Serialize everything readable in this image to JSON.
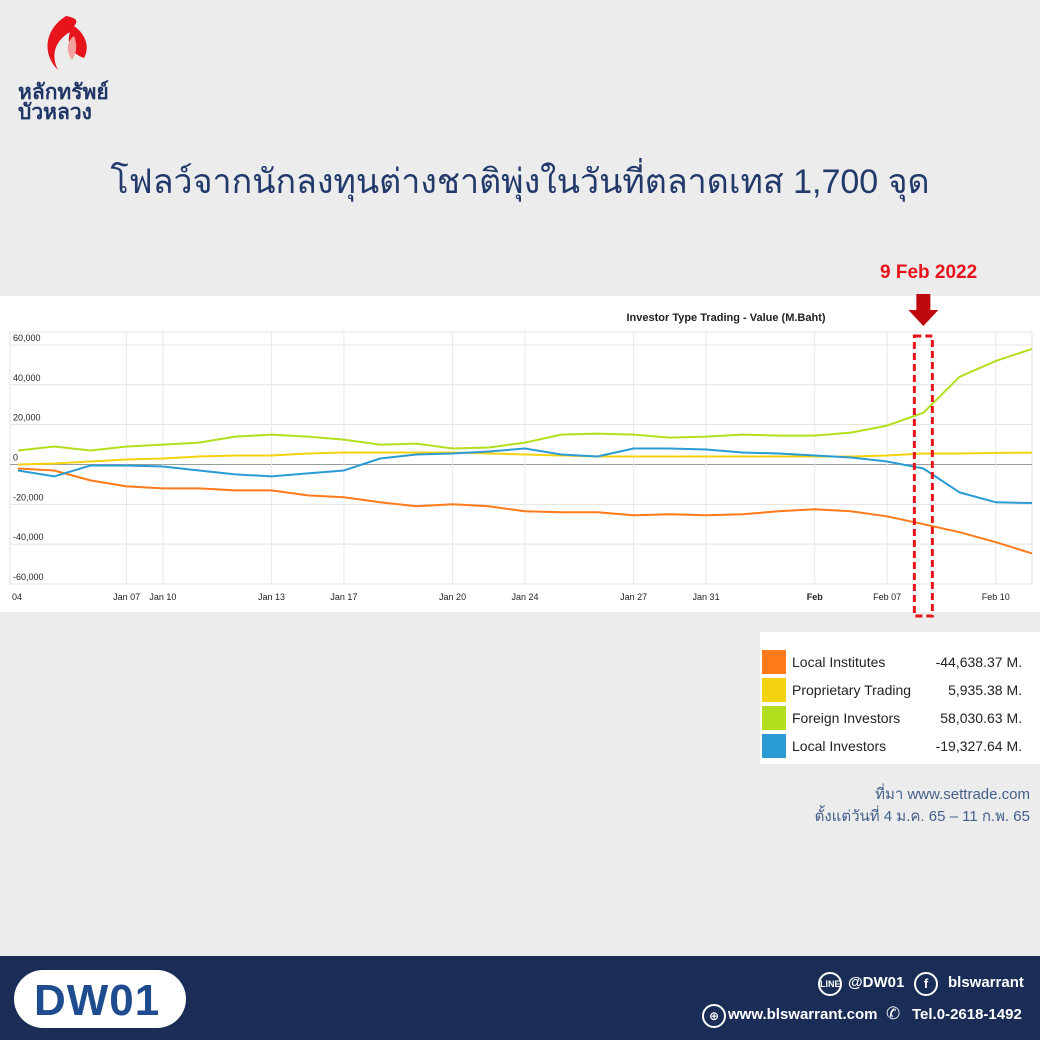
{
  "brand": {
    "line1": "หลักทรัพย์",
    "line2": "บัวหลวง",
    "logo_colors": [
      "#e8141c",
      "#f2a0a0"
    ]
  },
  "headline": "โฟลว์จากนักลงทุนต่างชาติพุ่งในวันที่ตลาดเทส 1,700 จุด",
  "callout": {
    "label": "9 Feb 2022",
    "color": "#e8141c",
    "arrow_icon": "down-arrow-icon"
  },
  "chart_data": {
    "type": "line",
    "title": "Investor Type Trading - Value (M.Baht)",
    "ylim": [
      -60000,
      60000
    ],
    "y_ticks": [
      60000,
      40000,
      20000,
      0,
      -20000,
      -40000,
      -60000
    ],
    "y_tick_labels": [
      "60,000",
      "40,000",
      "20,000",
      "0",
      "-20,000",
      "-40,000",
      "-60,000"
    ],
    "x_tick_labels": [
      "04",
      "Jan 07",
      "Jan 10",
      "Jan 13",
      "Jan 17",
      "Jan 20",
      "Jan 24",
      "Jan 27",
      "Jan 31",
      "Feb",
      "Feb 07",
      "Feb 10"
    ],
    "x_tick_index": [
      0,
      3,
      4,
      7,
      9,
      12,
      14,
      17,
      19,
      22,
      24,
      27
    ],
    "n_points": 29,
    "highlight_index": 25,
    "grid": true,
    "series": [
      {
        "name": "Local Institutes",
        "color": "#ff7a1a",
        "values": [
          -2000,
          -3000,
          -8000,
          -11000,
          -12000,
          -12000,
          -13000,
          -13000,
          -15500,
          -16500,
          -19000,
          -21000,
          -20000,
          -21000,
          -23500,
          -24000,
          -24000,
          -25500,
          -25000,
          -25500,
          -25000,
          -23500,
          -22500,
          -23500,
          -26000,
          -30000,
          -34000,
          -39000,
          -44638.37
        ]
      },
      {
        "name": "Proprietary Trading",
        "color": "#f5d20f",
        "values": [
          0,
          500,
          1500,
          2500,
          3000,
          4000,
          4500,
          4500,
          5500,
          6000,
          6000,
          6000,
          6000,
          5500,
          5000,
          4500,
          4000,
          4000,
          4000,
          4000,
          4000,
          4000,
          4000,
          4000,
          4500,
          5500,
          5500,
          5800,
          5935.38
        ]
      },
      {
        "name": "Foreign Investors",
        "color": "#b3de1e",
        "values": [
          7000,
          9000,
          7000,
          9000,
          10000,
          11000,
          14000,
          15000,
          14000,
          12500,
          10000,
          10500,
          8000,
          8500,
          11000,
          15000,
          15500,
          15000,
          13500,
          14000,
          15000,
          14500,
          14500,
          16000,
          19500,
          26000,
          44000,
          52000,
          58030.63
        ]
      },
      {
        "name": "Local Investors",
        "color": "#2b9bd4",
        "values": [
          -3000,
          -6000,
          -500,
          -500,
          -1000,
          -3000,
          -5000,
          -6000,
          -4500,
          -3000,
          3000,
          5000,
          5500,
          6500,
          8000,
          5000,
          4000,
          8000,
          8000,
          7500,
          6000,
          5500,
          4500,
          3500,
          1500,
          -2000,
          -14000,
          -19000,
          -19327.64
        ]
      }
    ]
  },
  "legend": [
    {
      "name": "Local Institutes",
      "value": "-44,638.37 M.",
      "color": "#ff7a1a"
    },
    {
      "name": "Proprietary Trading",
      "value": "5,935.38 M.",
      "color": "#f5d20f"
    },
    {
      "name": "Foreign Investors",
      "value": "58,030.63 M.",
      "color": "#b3de1e"
    },
    {
      "name": "Local Investors",
      "value": "-19,327.64 M.",
      "color": "#2b9bd4"
    }
  ],
  "source": {
    "line1": "ที่มา www.settrade.com",
    "line2": "ตั้งแต่วันที่ 4 ม.ค. 65 – 11 ก.พ. 65"
  },
  "footer": {
    "dw_logo": "DW01",
    "line_handle": "@DW01",
    "facebook_handle": "blswarrant",
    "website": "www.blswarrant.com",
    "tel": "Tel.0-2618-1492",
    "background": "#1a2d57"
  }
}
